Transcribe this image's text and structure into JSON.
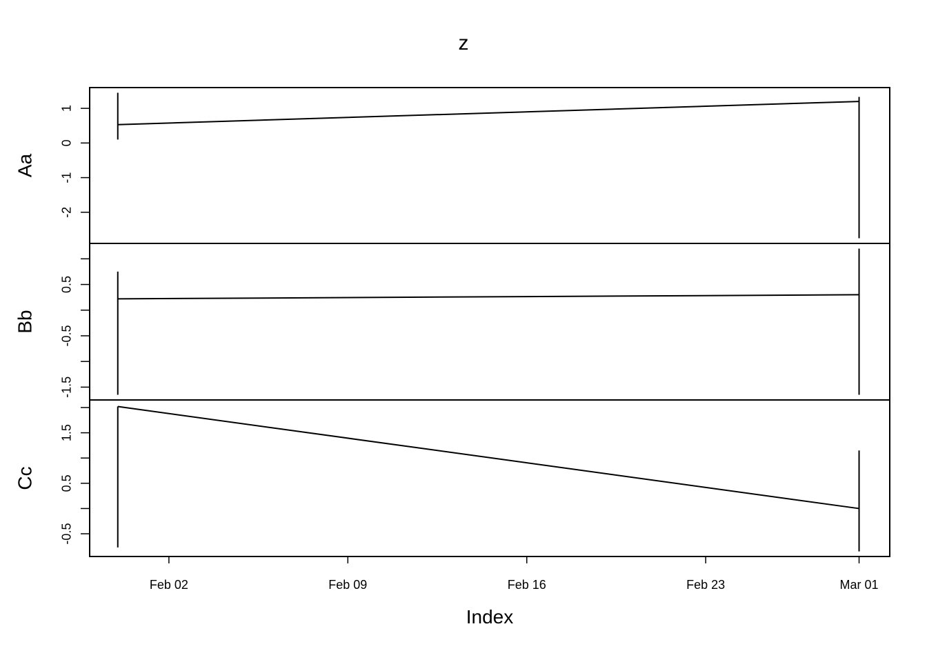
{
  "chart_data": {
    "type": "line",
    "title": "z",
    "xlabel": "Index",
    "x_ticks": [
      "Feb 02",
      "Feb 09",
      "Feb 16",
      "Feb 23",
      "Mar 01"
    ],
    "x_tick_dates": [
      "02-02",
      "02-09",
      "02-16",
      "02-23",
      "03-01"
    ],
    "x": [
      "01-31",
      "03-01"
    ],
    "xlim": [
      "01-29.9",
      "03-02.2"
    ],
    "panels": [
      {
        "name": "Aa",
        "ylim": [
          -2.9,
          1.6
        ],
        "y_ticks": [
          1,
          0,
          -1,
          -2
        ],
        "y_tick_labels": [
          "1",
          "0",
          "-1",
          "-2"
        ],
        "values": [
          0.53,
          1.2
        ],
        "spikes": [
          [
            0.1,
            1.45
          ],
          [
            -2.75,
            1.33
          ]
        ]
      },
      {
        "name": "Bb",
        "ylim": [
          -1.75,
          1.3
        ],
        "y_ticks": [
          1.0,
          0.5,
          0.0,
          -0.5,
          -1.0,
          -1.5
        ],
        "y_tick_labels": [
          "",
          "0.5",
          "",
          "-0.5",
          "",
          "-1.5"
        ],
        "values": [
          0.22,
          0.3
        ],
        "spikes": [
          [
            -1.65,
            0.75
          ],
          [
            -1.65,
            1.2
          ]
        ]
      },
      {
        "name": "Cc",
        "ylim": [
          -0.95,
          2.15
        ],
        "y_ticks": [
          2.0,
          1.5,
          1.0,
          0.5,
          0.0,
          -0.5
        ],
        "y_tick_labels": [
          "",
          "1.5",
          "",
          "0.5",
          "",
          "-0.5"
        ],
        "values": [
          2.02,
          0.0
        ],
        "spikes": [
          [
            -0.77,
            2.02
          ],
          [
            -0.85,
            1.15
          ]
        ]
      }
    ]
  }
}
